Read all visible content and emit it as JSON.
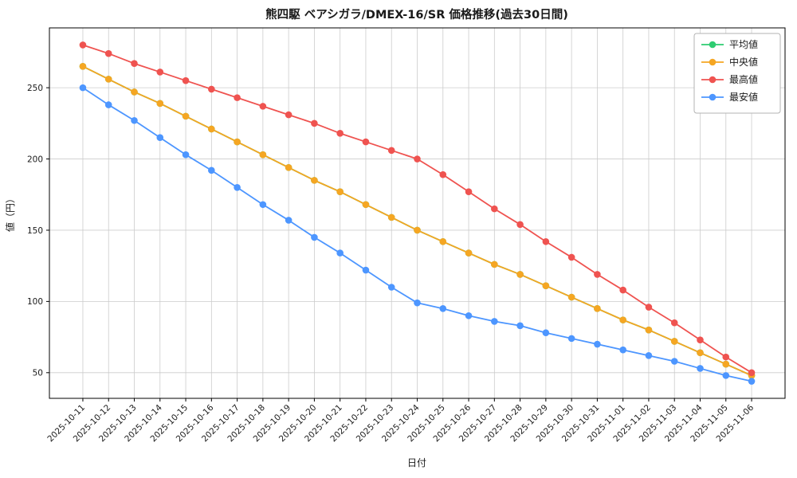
{
  "chart_data": {
    "type": "line",
    "title": "熊四駆 ベアシガラ/DMEX-16/SR 価格推移(過去30日間)",
    "xlabel": "日付",
    "ylabel": "値（円）",
    "x": [
      "2025-10-11",
      "2025-10-12",
      "2025-10-13",
      "2025-10-14",
      "2025-10-15",
      "2025-10-16",
      "2025-10-17",
      "2025-10-18",
      "2025-10-19",
      "2025-10-20",
      "2025-10-21",
      "2025-10-22",
      "2025-10-23",
      "2025-10-24",
      "2025-10-25",
      "2025-10-26",
      "2025-10-27",
      "2025-10-28",
      "2025-10-29",
      "2025-10-30",
      "2025-10-31",
      "2025-11-01",
      "2025-11-02",
      "2025-11-03",
      "2025-11-04",
      "2025-11-05",
      "2025-11-06"
    ],
    "series": [
      {
        "name": "平均値",
        "color": "#2ecc71",
        "values": [
          265,
          256,
          247,
          239,
          230,
          221,
          212,
          203,
          194,
          185,
          177,
          168,
          159,
          150,
          142,
          134,
          126,
          119,
          111,
          103,
          95,
          87,
          80,
          72,
          64,
          56,
          48
        ]
      },
      {
        "name": "中央値",
        "color": "#f5a623",
        "values": [
          265,
          256,
          247,
          239,
          230,
          221,
          212,
          203,
          194,
          185,
          177,
          168,
          159,
          150,
          142,
          134,
          126,
          119,
          111,
          103,
          95,
          87,
          80,
          72,
          64,
          56,
          48
        ]
      },
      {
        "name": "最高値",
        "color": "#ef5350",
        "values": [
          280,
          274,
          267,
          261,
          255,
          249,
          243,
          237,
          231,
          225,
          218,
          212,
          206,
          200,
          189,
          177,
          165,
          154,
          142,
          131,
          119,
          108,
          96,
          85,
          73,
          61,
          50
        ]
      },
      {
        "name": "最安値",
        "color": "#4d96ff",
        "values": [
          250,
          238,
          227,
          215,
          203,
          192,
          180,
          168,
          157,
          145,
          134,
          122,
          110,
          99,
          95,
          90,
          86,
          83,
          78,
          74,
          70,
          66,
          62,
          58,
          53,
          48,
          44
        ]
      }
    ],
    "yticks": [
      50,
      100,
      150,
      200,
      250
    ],
    "ylim": [
      32,
      292
    ],
    "grid": true,
    "legend_position": "upper right",
    "grid_color": "#cccccc",
    "axis_color": "#000000"
  }
}
